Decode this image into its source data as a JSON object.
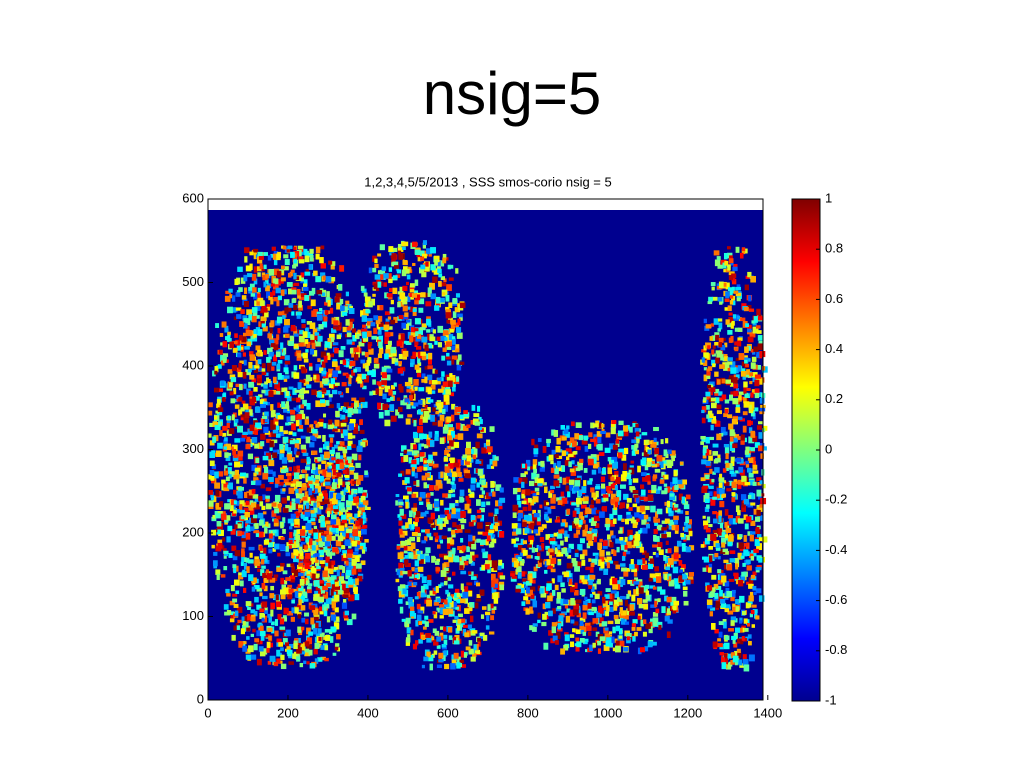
{
  "slide_title": "nsig=5",
  "chart_data": {
    "type": "heatmap",
    "title": "1,2,3,4,5/5/2013 , SSS smos-corio nsig = 5",
    "xlim": [
      0,
      1388
    ],
    "xticks": [
      0,
      200,
      400,
      600,
      800,
      1000,
      1200,
      1400
    ],
    "ylim": [
      0,
      600
    ],
    "yticks": [
      0,
      100,
      200,
      300,
      400,
      500,
      600
    ],
    "colormap": "jet",
    "clim": [
      -1,
      1
    ],
    "cticks": [
      -1,
      -0.8,
      -0.6,
      -0.4,
      -0.2,
      0,
      0.2,
      0.4,
      0.6,
      0.8,
      1
    ]
  }
}
